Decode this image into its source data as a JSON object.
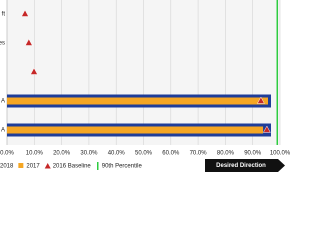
{
  "chart_data": {
    "type": "bar",
    "orientation": "horizontal",
    "categories": [
      "ft",
      "eties",
      null,
      "A",
      "A"
    ],
    "series": [
      {
        "name": "2018",
        "color": "#1f3d99",
        "values": [
          null,
          null,
          null,
          96.7,
          96.7
        ]
      },
      {
        "name": "2017",
        "color": "#f5a623",
        "values": [
          null,
          null,
          null,
          95.6,
          93.8
        ]
      },
      {
        "name": "2016 Baseline",
        "color": "#c62828",
        "marker": "triangle",
        "values": [
          6.6,
          8,
          9.9,
          93,
          95.2
        ]
      }
    ],
    "reference_line": {
      "name": "90th Percentile",
      "color": "#2ecc40",
      "value": 99
    },
    "annotation": "Desired Direction",
    "xlim": [
      0,
      100
    ],
    "xticks": [
      {
        "value": 0,
        "label": "0.0%"
      },
      {
        "value": 10,
        "label": "10.0%"
      },
      {
        "value": 20,
        "label": "20.0%"
      },
      {
        "value": 30,
        "label": "30.0%"
      },
      {
        "value": 40,
        "label": "40.0%"
      },
      {
        "value": 50,
        "label": "50.0%"
      },
      {
        "value": 60,
        "label": "60.0%"
      },
      {
        "value": 70,
        "label": "70.0%"
      },
      {
        "value": 80,
        "label": "80.0%"
      },
      {
        "value": 90,
        "label": "90.0%"
      },
      {
        "value": 100,
        "label": "100.0%"
      }
    ],
    "grid": true
  }
}
